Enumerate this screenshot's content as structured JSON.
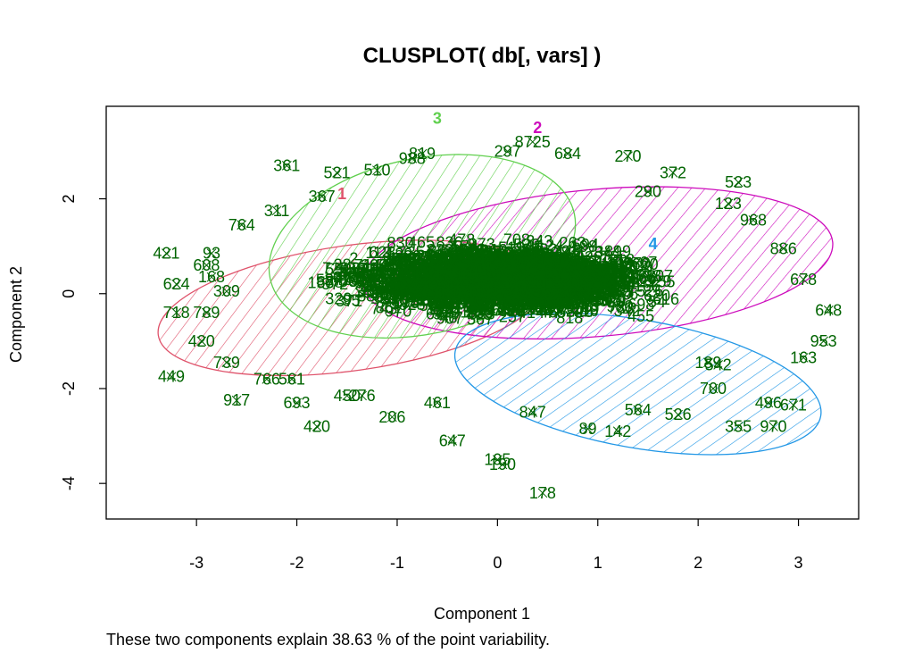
{
  "chart_data": {
    "type": "scatter",
    "title": "CLUSPLOT( db[, vars] )",
    "xlabel": "Component 1",
    "ylabel": "Component 2",
    "subtitle": "These two components explain 38.63 % of the point variability.",
    "xlim": [
      -3.9,
      3.6
    ],
    "ylim": [
      -4.75,
      3.95
    ],
    "xticks": [
      -3,
      -2,
      -1,
      0,
      1,
      2,
      3
    ],
    "yticks": [
      -4,
      -2,
      0,
      2
    ],
    "grid": false,
    "point_color": "#006400",
    "clusters": [
      {
        "label": "1",
        "color": "#DF536B",
        "center": [
          -1.55,
          2.1
        ]
      },
      {
        "label": "2",
        "color": "#CD0BBC",
        "center": [
          0.4,
          3.5
        ]
      },
      {
        "label": "3",
        "color": "#61D04F",
        "center": [
          -0.6,
          3.7
        ]
      },
      {
        "label": "4",
        "color": "#2297E6",
        "center": [
          1.55,
          1.05
        ]
      }
    ],
    "points": [
      {
        "x": -2.1,
        "y": 2.7,
        "label": "361"
      },
      {
        "x": -1.6,
        "y": 2.55,
        "label": "521"
      },
      {
        "x": -1.2,
        "y": 2.6,
        "label": "510"
      },
      {
        "x": -0.75,
        "y": 2.95,
        "label": "819"
      },
      {
        "x": 0.35,
        "y": 3.2,
        "label": "8725"
      },
      {
        "x": 0.1,
        "y": 3.0,
        "label": "297"
      },
      {
        "x": 0.7,
        "y": 2.95,
        "label": "684"
      },
      {
        "x": 1.3,
        "y": 2.9,
        "label": "270"
      },
      {
        "x": 1.75,
        "y": 2.55,
        "label": "372"
      },
      {
        "x": 2.4,
        "y": 2.35,
        "label": "523"
      },
      {
        "x": 1.5,
        "y": 2.15,
        "label": "290"
      },
      {
        "x": 2.3,
        "y": 1.9,
        "label": "123"
      },
      {
        "x": -3.3,
        "y": 0.85,
        "label": "421"
      },
      {
        "x": -2.85,
        "y": 0.85,
        "label": "93"
      },
      {
        "x": -2.9,
        "y": 0.6,
        "label": "608"
      },
      {
        "x": -3.2,
        "y": 0.2,
        "label": "624"
      },
      {
        "x": -3.2,
        "y": -0.4,
        "label": "718"
      },
      {
        "x": -2.9,
        "y": -0.4,
        "label": "789"
      },
      {
        "x": -2.95,
        "y": -1.0,
        "label": "420"
      },
      {
        "x": -2.7,
        "y": -1.45,
        "label": "739"
      },
      {
        "x": -3.25,
        "y": -1.75,
        "label": "449"
      },
      {
        "x": -2.6,
        "y": -2.25,
        "label": "917"
      },
      {
        "x": -2.0,
        "y": -2.3,
        "label": "693"
      },
      {
        "x": -1.8,
        "y": -2.8,
        "label": "420"
      },
      {
        "x": -1.5,
        "y": -2.15,
        "label": "450"
      },
      {
        "x": -1.35,
        "y": -2.15,
        "label": "276"
      },
      {
        "x": -1.05,
        "y": -2.6,
        "label": "206"
      },
      {
        "x": -0.6,
        "y": -2.3,
        "label": "461"
      },
      {
        "x": -0.45,
        "y": -3.1,
        "label": "647"
      },
      {
        "x": 0.0,
        "y": -3.5,
        "label": "195"
      },
      {
        "x": 0.05,
        "y": -3.6,
        "label": "190"
      },
      {
        "x": 0.45,
        "y": -4.2,
        "label": "178"
      },
      {
        "x": 0.35,
        "y": -2.5,
        "label": "847"
      },
      {
        "x": 0.9,
        "y": -2.85,
        "label": "89"
      },
      {
        "x": 1.2,
        "y": -2.9,
        "label": "142"
      },
      {
        "x": 1.4,
        "y": -2.45,
        "label": "564"
      },
      {
        "x": 1.8,
        "y": -2.55,
        "label": "526"
      },
      {
        "x": 2.15,
        "y": -2.0,
        "label": "700"
      },
      {
        "x": 2.4,
        "y": -2.8,
        "label": "355"
      },
      {
        "x": 2.75,
        "y": -2.8,
        "label": "970"
      },
      {
        "x": 2.7,
        "y": -2.3,
        "label": "496"
      },
      {
        "x": 2.95,
        "y": -2.35,
        "label": "671"
      },
      {
        "x": 3.05,
        "y": -1.35,
        "label": "163"
      },
      {
        "x": 3.25,
        "y": -1.0,
        "label": "953"
      },
      {
        "x": 3.3,
        "y": -0.35,
        "label": "648"
      },
      {
        "x": 3.05,
        "y": 0.3,
        "label": "678"
      },
      {
        "x": 2.85,
        "y": 0.95,
        "label": "886"
      },
      {
        "x": 2.55,
        "y": 1.55,
        "label": "968"
      },
      {
        "x": 2.2,
        "y": -1.5,
        "label": "542"
      },
      {
        "x": 2.1,
        "y": -1.45,
        "label": "189"
      },
      {
        "x": -0.85,
        "y": 2.85,
        "label": "988"
      },
      {
        "x": -1.75,
        "y": 2.05,
        "label": "367"
      },
      {
        "x": -2.2,
        "y": 1.75,
        "label": "311"
      },
      {
        "x": -2.55,
        "y": 1.45,
        "label": "764"
      },
      {
        "x": -2.85,
        "y": 0.35,
        "label": "168"
      },
      {
        "x": -2.7,
        "y": 0.05,
        "label": "309"
      },
      {
        "x": -2.3,
        "y": -1.8,
        "label": "766"
      },
      {
        "x": -2.05,
        "y": -1.8,
        "label": "561"
      }
    ]
  }
}
